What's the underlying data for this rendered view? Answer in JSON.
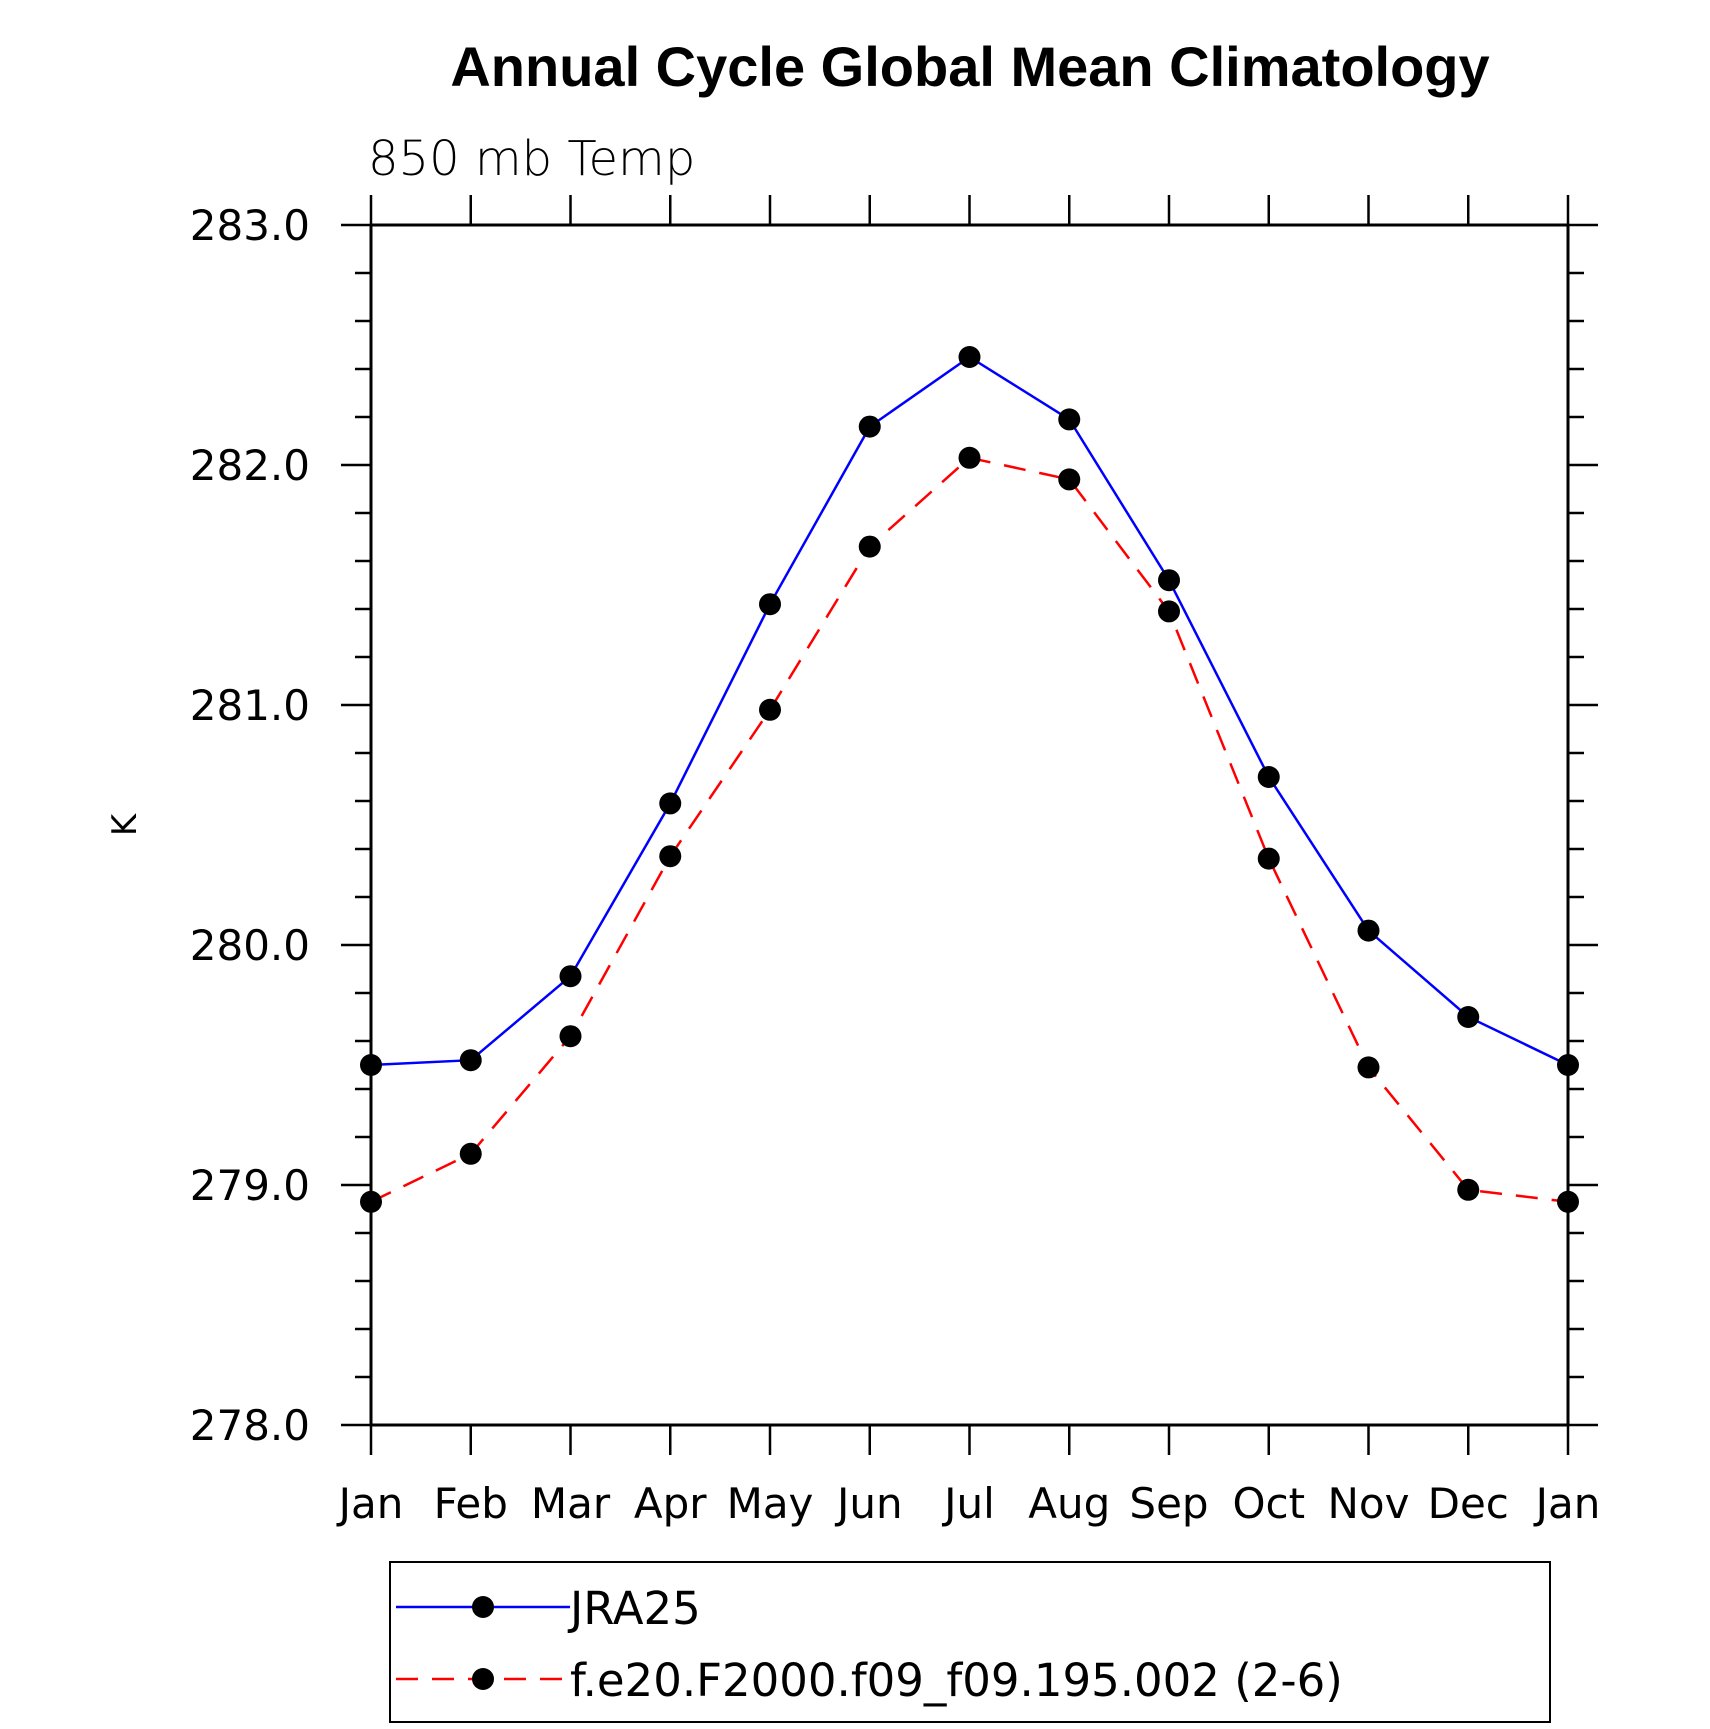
{
  "chart_data": {
    "type": "line",
    "title": "Annual Cycle Global Mean Climatology",
    "subtitle": "850 mb Temp",
    "ylabel": "K",
    "xlabel": "",
    "categories": [
      "Jan",
      "Feb",
      "Mar",
      "Apr",
      "May",
      "Jun",
      "Jul",
      "Aug",
      "Sep",
      "Oct",
      "Nov",
      "Dec",
      "Jan"
    ],
    "ylim": [
      278.0,
      283.0
    ],
    "yticks": [
      "278.0",
      "279.0",
      "280.0",
      "281.0",
      "282.0",
      "283.0"
    ],
    "ytick_values": [
      278.0,
      279.0,
      280.0,
      281.0,
      282.0,
      283.0
    ],
    "grid": false,
    "legend_position": "bottom",
    "series": [
      {
        "name": "JRA25",
        "color": "#0000ff",
        "line_style": "solid",
        "marker": "filled-circle",
        "values": [
          279.5,
          279.52,
          279.87,
          280.59,
          281.42,
          282.16,
          282.45,
          282.19,
          281.52,
          280.7,
          280.06,
          279.7,
          279.5
        ]
      },
      {
        "name": "f.e20.F2000.f09_f09.195.002 (2-6)",
        "color": "#ff0000",
        "line_style": "dashed",
        "marker": "filled-circle",
        "values": [
          278.93,
          279.13,
          279.62,
          280.37,
          280.98,
          281.66,
          282.03,
          281.94,
          281.39,
          280.36,
          279.49,
          278.98,
          278.93
        ]
      }
    ]
  }
}
